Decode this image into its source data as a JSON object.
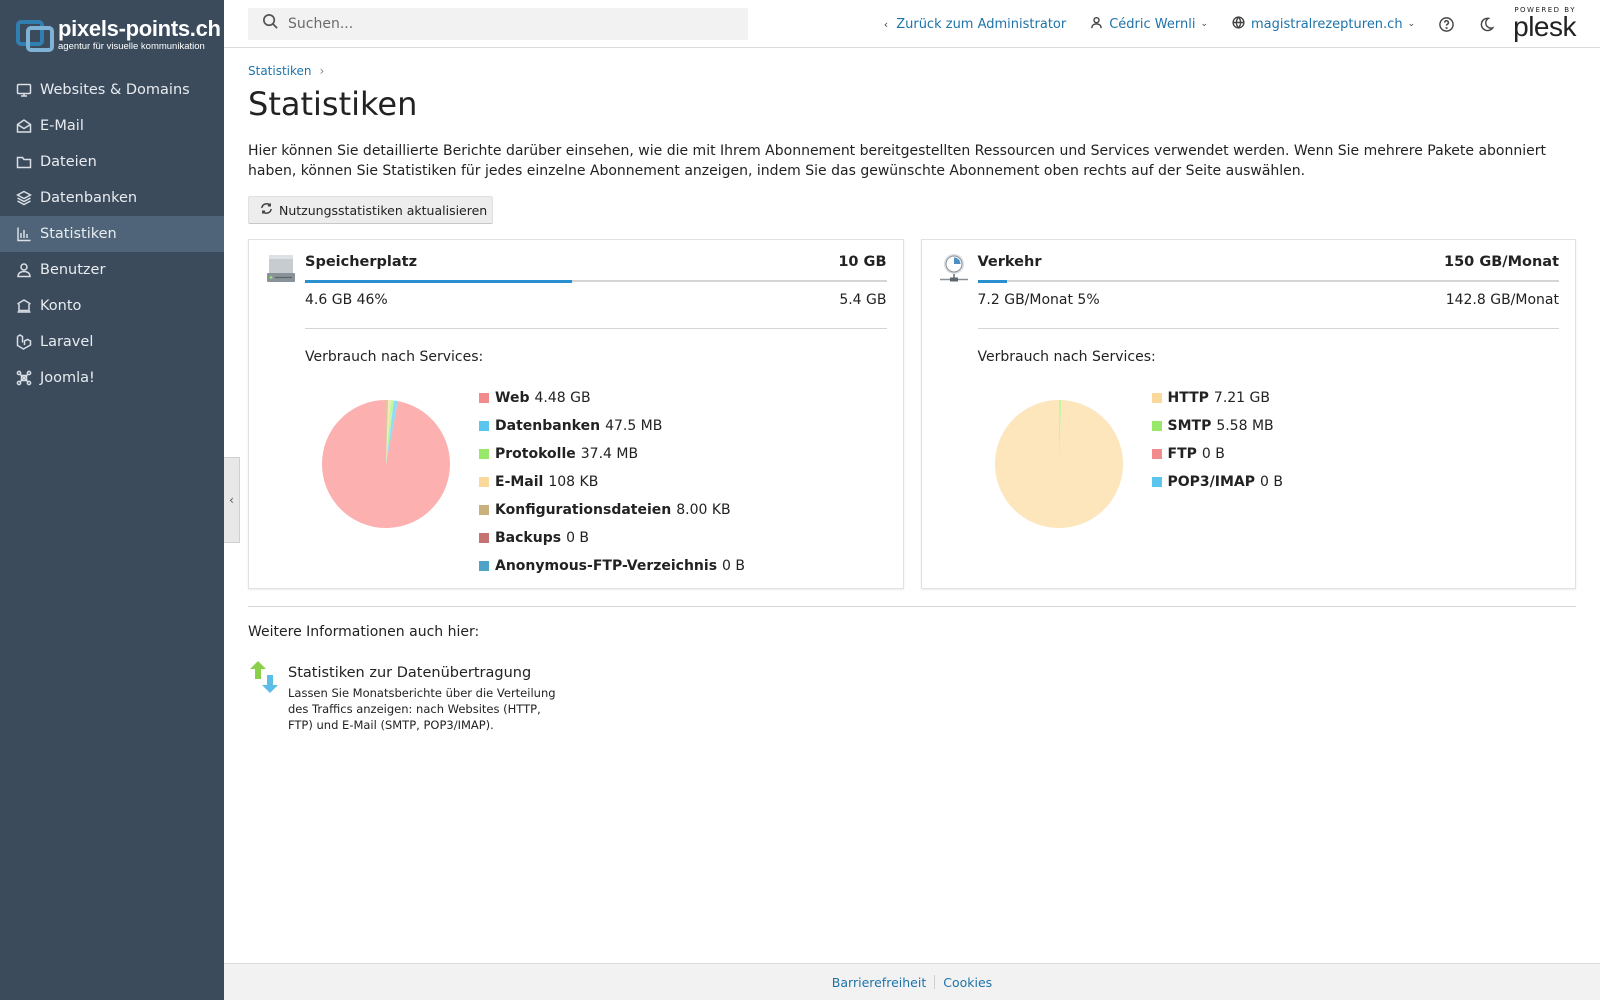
{
  "brand": {
    "name": "pixels-points.ch",
    "tagline": "agentur für visuelle kommunikation"
  },
  "sidebar": {
    "items": [
      {
        "label": "Websites & Domains",
        "icon": "monitor-icon"
      },
      {
        "label": "E-Mail",
        "icon": "envelope-icon"
      },
      {
        "label": "Dateien",
        "icon": "folder-icon"
      },
      {
        "label": "Datenbanken",
        "icon": "layers-icon"
      },
      {
        "label": "Statistiken",
        "icon": "bar-chart-icon",
        "active": true
      },
      {
        "label": "Benutzer",
        "icon": "user-icon"
      },
      {
        "label": "Konto",
        "icon": "account-icon"
      },
      {
        "label": "Laravel",
        "icon": "laravel-icon"
      },
      {
        "label": "Joomla!",
        "icon": "joomla-icon"
      }
    ]
  },
  "header": {
    "search_placeholder": "Suchen...",
    "back_label": "Zurück zum Administrator",
    "user_label": "Cédric Wernli",
    "domain_label": "magistralrezepturen.ch",
    "plesk_powered": "POWERED BY",
    "plesk_name": "plesk"
  },
  "breadcrumb": {
    "label": "Statistiken"
  },
  "page": {
    "title": "Statistiken",
    "intro": "Hier können Sie detaillierte Berichte darüber einsehen, wie die mit Ihrem Abonnement bereitgestellten Ressourcen und Services verwendet werden. Wenn Sie mehrere Pakete abonniert haben, können Sie Statistiken für jedes einzelne Abonnement anzeigen, indem Sie das gewünschte Abonnement oben rechts auf der Seite auswählen.",
    "refresh_button": "Nutzungsstatistiken aktualisieren"
  },
  "storage": {
    "title": "Speicherplatz",
    "total": "10 GB",
    "used": "4.6 GB 46%",
    "free": "5.4 GB",
    "usage_fraction": 0.46,
    "services_title": "Verbrauch nach Services:",
    "legend": [
      {
        "name": "Web",
        "value": "4.48 GB",
        "color": "#f28b8b"
      },
      {
        "name": "Datenbanken",
        "value": "47.5 MB",
        "color": "#5bc5ef"
      },
      {
        "name": "Protokolle",
        "value": "37.4 MB",
        "color": "#9ae86a"
      },
      {
        "name": "E-Mail",
        "value": "108 KB",
        "color": "#fbd89c"
      },
      {
        "name": "Konfigurationsdateien",
        "value": "8.00 KB",
        "color": "#c9b07f"
      },
      {
        "name": "Backups",
        "value": "0 B",
        "color": "#c77272"
      },
      {
        "name": "Anonymous-FTP-Verzeichnis",
        "value": "0 B",
        "color": "#4fa3c6"
      }
    ]
  },
  "traffic": {
    "title": "Verkehr",
    "total": "150 GB/Monat",
    "used": "7.2 GB/Monat 5%",
    "free": "142.8 GB/Monat",
    "usage_fraction": 0.05,
    "services_title": "Verbrauch nach Services:",
    "legend": [
      {
        "name": "HTTP",
        "value": "7.21 GB",
        "color": "#fbd89c"
      },
      {
        "name": "SMTP",
        "value": "5.58 MB",
        "color": "#9ae86a"
      },
      {
        "name": "FTP",
        "value": "0 B",
        "color": "#f28b8b"
      },
      {
        "name": "POP3/IMAP",
        "value": "0 B",
        "color": "#5bc5ef"
      }
    ]
  },
  "chart_data": [
    {
      "type": "pie",
      "categories": [
        "Web",
        "Datenbanken",
        "Protokolle",
        "E-Mail",
        "Konfigurationsdateien",
        "Backups",
        "Anonymous-FTP-Verzeichnis"
      ],
      "values": [
        4480,
        47.5,
        37.4,
        0.108,
        0.008,
        0,
        0
      ],
      "colors": [
        "#fdb0b0",
        "#8fdcf8",
        "#c2f6a0",
        "#fde6bc",
        "#ddc9a2",
        "#e09a9a",
        "#86c2dc"
      ]
    },
    {
      "type": "pie",
      "categories": [
        "HTTP",
        "SMTP",
        "FTP",
        "POP3/IMAP"
      ],
      "values": [
        7210,
        5.58,
        0,
        0
      ],
      "colors": [
        "#fde6bc",
        "#c2f6a0",
        "#fdb0b0",
        "#8fdcf8"
      ]
    }
  ],
  "more": {
    "title": "Weitere Informationen auch hier:",
    "link_title": "Statistiken zur Datenübertragung",
    "link_desc": "Lassen Sie Monatsberichte über die Verteilung des Traffics anzeigen: nach Websites (HTTP, FTP) und E-Mail (SMTP, POP3/IMAP)."
  },
  "footer": {
    "accessibility": "Barrierefreiheit",
    "cookies": "Cookies"
  }
}
